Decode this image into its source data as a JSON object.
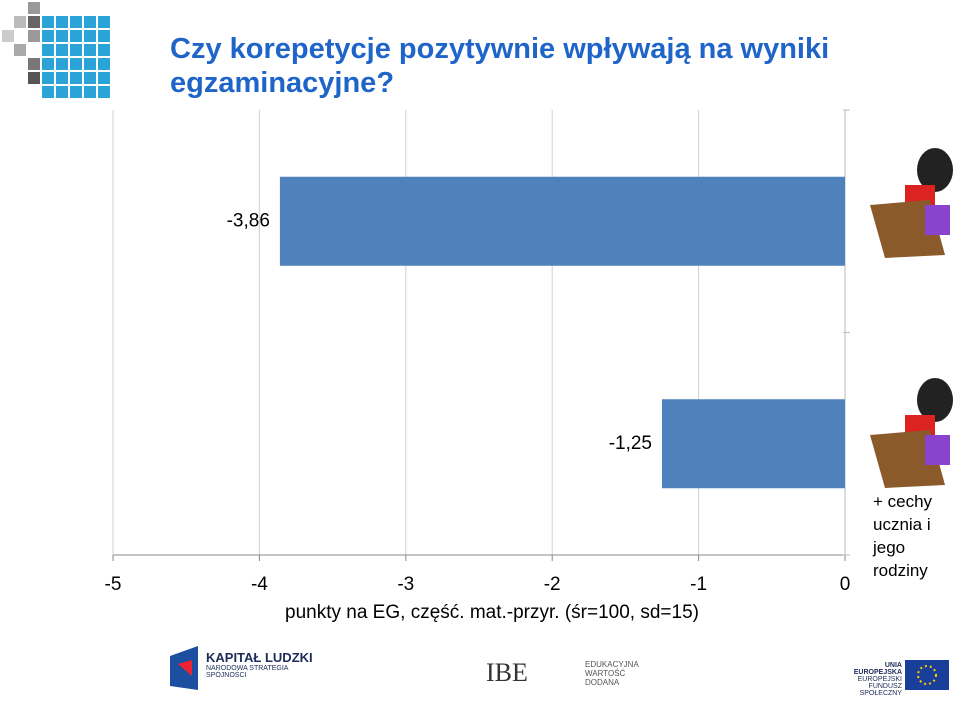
{
  "chart_data": {
    "type": "hbar",
    "title": "Czy korepetycje pozytywnie wpływają na wyniki egzaminacyjne?",
    "categories": [
      null,
      "+ cechy ucznia i jego rodziny"
    ],
    "values": [
      -3.86,
      -1.25
    ],
    "value_labels": [
      "-3,86",
      "-1,25"
    ],
    "color": "#4f81bd",
    "xlim": [
      -5,
      0
    ],
    "xticks": [
      -5,
      -4,
      -3,
      -2,
      -1,
      0
    ],
    "xlabel": "punkty na EG, część. mat.-przyr. (śr=100, sd=15)",
    "grid": true
  },
  "footer": {
    "kapital": "KAPITAŁ LUDZKI",
    "kapital_sub": "NARODOWA STRATEGIA SPÓJNOŚCI",
    "ibe": "IBE",
    "ibe_sub": "EDUKACYJNA WARTOŚĆ DODANA",
    "ue": "UNIA EUROPEJSKA",
    "ue_sub": "EUROPEJSKI FUNDUSZ SPOŁECZNY"
  }
}
